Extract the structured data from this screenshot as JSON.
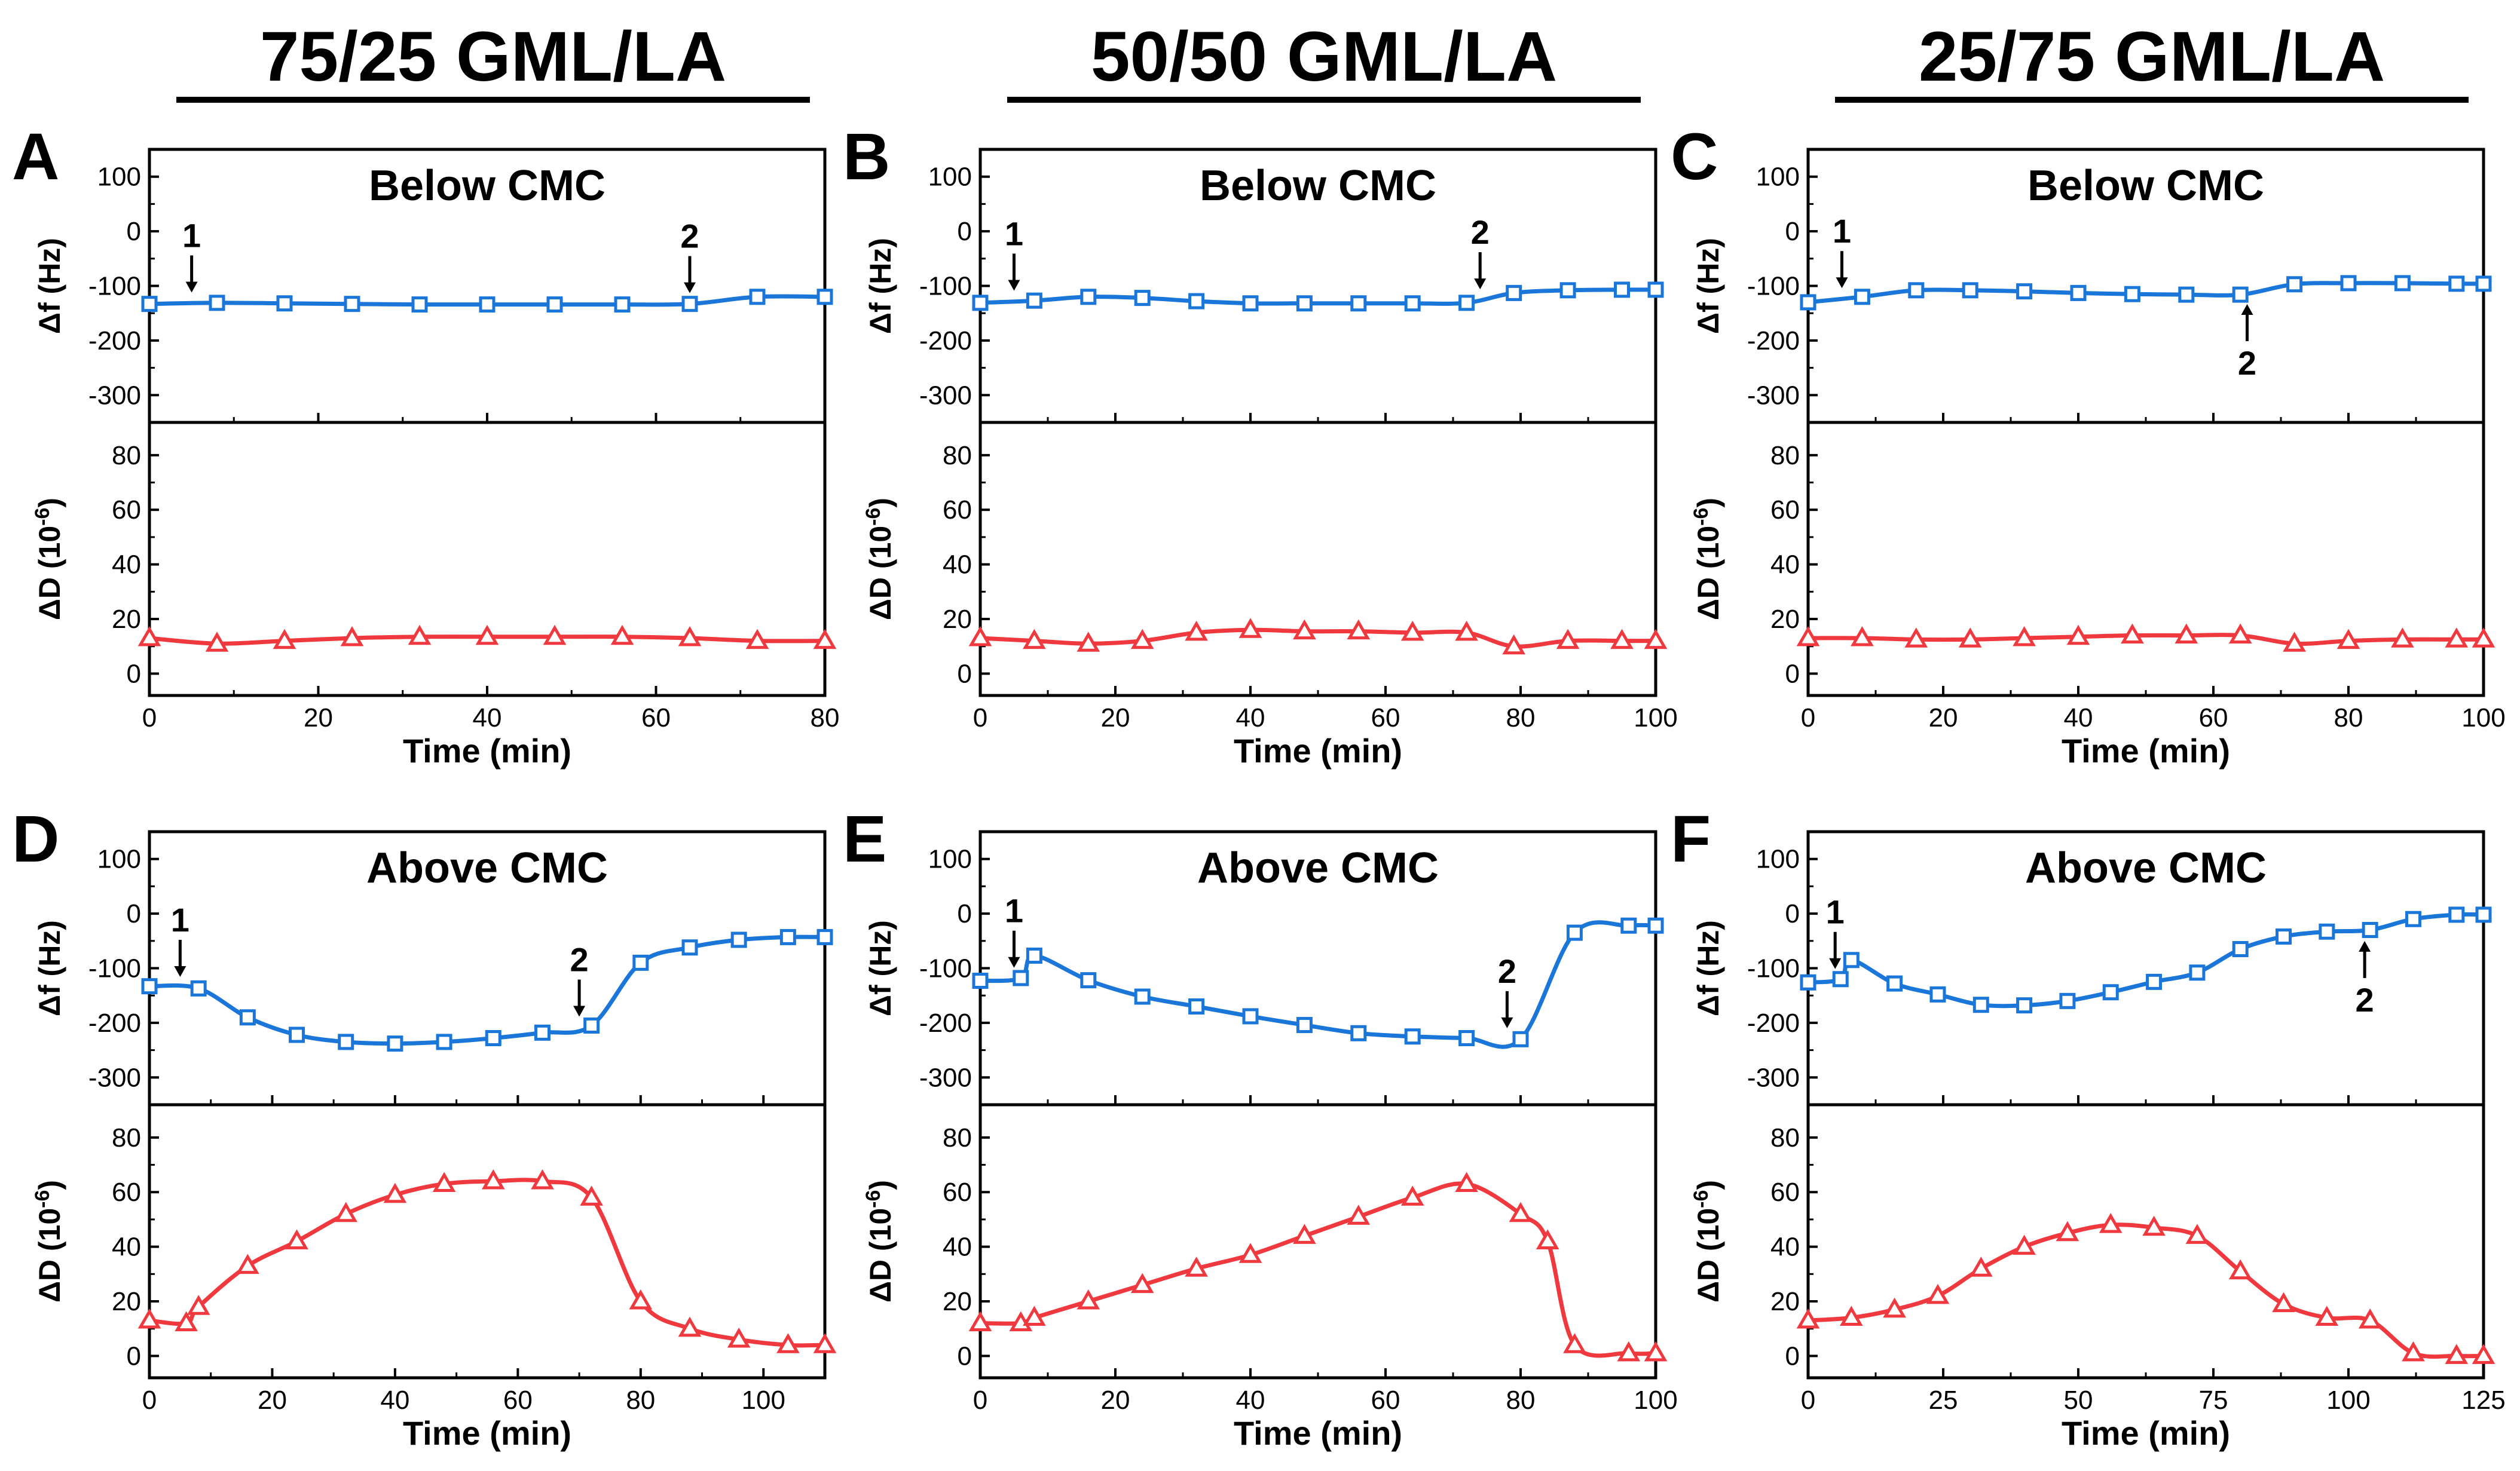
{
  "colors": {
    "df": "#1a76d8",
    "dD": "#f0393e",
    "axis": "#000000"
  },
  "groups": [
    "75/25 GML/LA",
    "50/50 GML/LA",
    "25/75 GML/LA"
  ],
  "chart_data": [
    {
      "type": "line",
      "panel": "A",
      "title": "Below CMC",
      "xlabel": "Time (min)",
      "ylabel_df": "Δf (Hz)",
      "ylabel_dD": "ΔD (10",
      "ylabel_exp": "-6",
      "ylabel_close": ")",
      "xlim": [
        0,
        80
      ],
      "xticks": [
        0,
        20,
        40,
        60,
        80
      ],
      "df_ylim": [
        -350,
        150
      ],
      "df_yticks": [
        100,
        0,
        -100,
        -200,
        -300
      ],
      "dD_ylim": [
        -8,
        92
      ],
      "dD_yticks": [
        80,
        60,
        40,
        20,
        0
      ],
      "df": {
        "x": [
          0,
          8,
          16,
          24,
          32,
          40,
          48,
          56,
          64,
          72,
          80
        ],
        "y": [
          -133,
          -131,
          -132,
          -133,
          -134,
          -134,
          -134,
          -134,
          -133,
          -120,
          -120
        ]
      },
      "dD": {
        "x": [
          0,
          8,
          16,
          24,
          32,
          40,
          48,
          56,
          64,
          72,
          80
        ],
        "y": [
          13,
          11,
          12,
          13,
          13.5,
          13.5,
          13.5,
          13.5,
          13,
          12,
          12
        ]
      },
      "markers": [
        {
          "label": "1",
          "x": 5,
          "dir": "down"
        },
        {
          "label": "2",
          "x": 64,
          "dir": "down"
        }
      ]
    },
    {
      "type": "line",
      "panel": "B",
      "title": "Below CMC",
      "xlabel": "Time (min)",
      "ylabel_df": "Δf (Hz)",
      "ylabel_dD": "ΔD (10",
      "ylabel_exp": "-6",
      "ylabel_close": ")",
      "xlim": [
        0,
        100
      ],
      "xticks": [
        0,
        20,
        40,
        60,
        80,
        100
      ],
      "df_ylim": [
        -350,
        150
      ],
      "df_yticks": [
        100,
        0,
        -100,
        -200,
        -300
      ],
      "dD_ylim": [
        -8,
        92
      ],
      "dD_yticks": [
        80,
        60,
        40,
        20,
        0
      ],
      "df": {
        "x": [
          0,
          8,
          16,
          24,
          32,
          40,
          48,
          56,
          64,
          72,
          79,
          87,
          95,
          100
        ],
        "y": [
          -131,
          -127,
          -120,
          -122,
          -128,
          -132,
          -132,
          -132,
          -132,
          -131,
          -113,
          -108,
          -107,
          -107
        ]
      },
      "dD": {
        "x": [
          0,
          8,
          16,
          24,
          32,
          40,
          48,
          56,
          64,
          72,
          79,
          87,
          95,
          100
        ],
        "y": [
          13,
          12,
          11,
          12,
          15,
          16,
          15.5,
          15.5,
          15,
          15,
          10,
          12,
          12,
          12
        ]
      },
      "markers": [
        {
          "label": "1",
          "x": 5,
          "dir": "down"
        },
        {
          "label": "2",
          "x": 74,
          "dir": "down"
        }
      ]
    },
    {
      "type": "line",
      "panel": "C",
      "title": "Below CMC",
      "xlabel": "Time (min)",
      "ylabel_df": "Δf (Hz)",
      "ylabel_dD": "ΔD (10",
      "ylabel_exp": "-6",
      "ylabel_close": ")",
      "xlim": [
        0,
        100
      ],
      "xticks": [
        0,
        20,
        40,
        60,
        80,
        100
      ],
      "df_ylim": [
        -350,
        150
      ],
      "df_yticks": [
        100,
        0,
        -100,
        -200,
        -300
      ],
      "dD_ylim": [
        -8,
        92
      ],
      "dD_yticks": [
        80,
        60,
        40,
        20,
        0
      ],
      "df": {
        "x": [
          0,
          8,
          16,
          24,
          32,
          40,
          48,
          56,
          64,
          72,
          80,
          88,
          96,
          100
        ],
        "y": [
          -130,
          -120,
          -108,
          -108,
          -110,
          -113,
          -115,
          -116,
          -116,
          -97,
          -95,
          -95,
          -96,
          -96
        ]
      },
      "dD": {
        "x": [
          0,
          8,
          16,
          24,
          32,
          40,
          48,
          56,
          64,
          72,
          80,
          88,
          96,
          100
        ],
        "y": [
          13,
          13,
          12.5,
          12.5,
          13,
          13.5,
          14,
          14,
          14,
          11,
          12,
          12.5,
          12.5,
          12.5
        ]
      },
      "markers": [
        {
          "label": "1",
          "x": 5,
          "dir": "down"
        },
        {
          "label": "2",
          "x": 65,
          "dir": "up"
        }
      ]
    },
    {
      "type": "line",
      "panel": "D",
      "title": "Above CMC",
      "xlabel": "Time (min)",
      "ylabel_df": "Δf (Hz)",
      "ylabel_dD": "ΔD (10",
      "ylabel_exp": "-6",
      "ylabel_close": ")",
      "xlim": [
        0,
        110
      ],
      "xticks": [
        0,
        20,
        40,
        60,
        80,
        100
      ],
      "df_ylim": [
        -350,
        150
      ],
      "df_yticks": [
        100,
        0,
        -100,
        -200,
        -300
      ],
      "dD_ylim": [
        -8,
        92
      ],
      "dD_yticks": [
        80,
        60,
        40,
        20,
        0
      ],
      "df": {
        "x": [
          0,
          8,
          16,
          24,
          32,
          40,
          48,
          56,
          64,
          72,
          80,
          88,
          96,
          104,
          110
        ],
        "y": [
          -133,
          -137,
          -190,
          -222,
          -235,
          -238,
          -235,
          -228,
          -218,
          -205,
          -90,
          -62,
          -48,
          -43,
          -43
        ]
      },
      "dD": {
        "x": [
          0,
          6,
          8,
          16,
          24,
          32,
          40,
          48,
          56,
          64,
          72,
          80,
          88,
          96,
          104,
          110
        ],
        "y": [
          13,
          12,
          18,
          33,
          42,
          52,
          59,
          63,
          64,
          64,
          58,
          20,
          10,
          6,
          4,
          4
        ]
      },
      "markers": [
        {
          "label": "1",
          "x": 5,
          "dir": "down"
        },
        {
          "label": "2",
          "x": 70,
          "dir": "down"
        }
      ]
    },
    {
      "type": "line",
      "panel": "E",
      "title": "Above CMC",
      "xlabel": "Time (min)",
      "ylabel_df": "Δf (Hz)",
      "ylabel_dD": "ΔD (10",
      "ylabel_exp": "-6",
      "ylabel_close": ")",
      "xlim": [
        0,
        100
      ],
      "xticks": [
        0,
        20,
        40,
        60,
        80,
        100
      ],
      "df_ylim": [
        -350,
        150
      ],
      "df_yticks": [
        100,
        0,
        -100,
        -200,
        -300
      ],
      "dD_ylim": [
        -8,
        92
      ],
      "dD_yticks": [
        80,
        60,
        40,
        20,
        0
      ],
      "df": {
        "x": [
          0,
          6,
          8,
          16,
          24,
          32,
          40,
          48,
          56,
          64,
          72,
          80,
          88,
          96,
          100
        ],
        "y": [
          -123,
          -118,
          -77,
          -122,
          -152,
          -170,
          -188,
          -204,
          -219,
          -225,
          -228,
          -230,
          -35,
          -22,
          -22
        ]
      },
      "dD": {
        "x": [
          0,
          6,
          8,
          16,
          24,
          32,
          40,
          48,
          56,
          64,
          72,
          80,
          84,
          88,
          96,
          100
        ],
        "y": [
          12,
          12,
          14,
          20,
          26,
          32,
          37,
          44,
          51,
          58,
          63,
          52,
          42,
          4,
          1,
          1
        ]
      },
      "markers": [
        {
          "label": "1",
          "x": 5,
          "dir": "down"
        },
        {
          "label": "2",
          "x": 78,
          "dir": "down"
        }
      ]
    },
    {
      "type": "line",
      "panel": "F",
      "title": "Above CMC",
      "xlabel": "Time (min)",
      "ylabel_df": "Δf (Hz)",
      "ylabel_dD": "ΔD (10",
      "ylabel_exp": "-6",
      "ylabel_close": ")",
      "xlim": [
        0,
        125
      ],
      "xticks": [
        0,
        25,
        50,
        75,
        100,
        125
      ],
      "df_ylim": [
        -350,
        150
      ],
      "df_yticks": [
        100,
        0,
        -100,
        -200,
        -300
      ],
      "dD_ylim": [
        -8,
        92
      ],
      "dD_yticks": [
        80,
        60,
        40,
        20,
        0
      ],
      "df": {
        "x": [
          0,
          6,
          8,
          16,
          24,
          32,
          40,
          48,
          56,
          64,
          72,
          80,
          88,
          96,
          104,
          112,
          120,
          125
        ],
        "y": [
          -126,
          -120,
          -85,
          -128,
          -148,
          -167,
          -168,
          -160,
          -144,
          -125,
          -108,
          -65,
          -42,
          -33,
          -30,
          -10,
          -2,
          -2
        ]
      },
      "dD": {
        "x": [
          0,
          8,
          16,
          24,
          32,
          40,
          48,
          56,
          64,
          72,
          80,
          88,
          96,
          104,
          112,
          120,
          125
        ],
        "y": [
          13,
          14,
          17,
          22,
          32,
          40,
          45,
          48,
          47,
          44,
          31,
          19,
          14,
          13,
          1,
          0,
          0
        ]
      },
      "markers": [
        {
          "label": "1",
          "x": 5,
          "dir": "down"
        },
        {
          "label": "2",
          "x": 103,
          "dir": "up"
        }
      ]
    }
  ]
}
